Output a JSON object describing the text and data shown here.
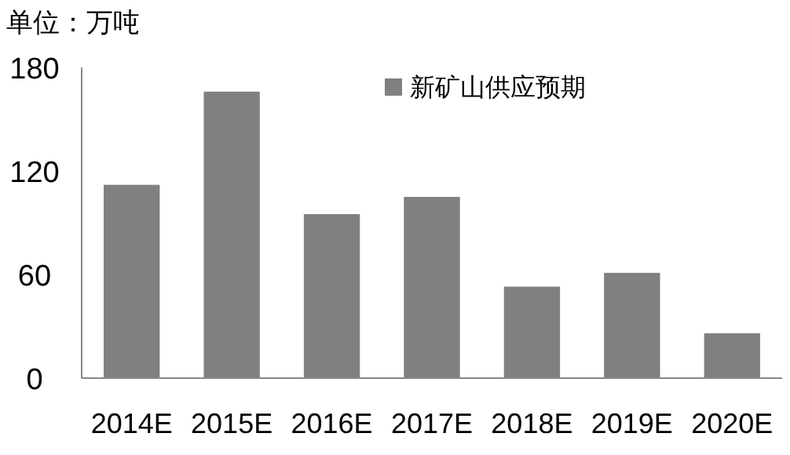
{
  "chart_data": {
    "type": "bar",
    "ylabel": "单位：万吨",
    "categories": [
      "2014E",
      "2015E",
      "2016E",
      "2017E",
      "2018E",
      "2019E",
      "2020E"
    ],
    "series": [
      {
        "name": "新矿山供应预期",
        "color": "#808080",
        "values": [
          112,
          166,
          95,
          105,
          53,
          61,
          26
        ]
      }
    ],
    "ylim": [
      0,
      180
    ],
    "yticks": [
      0,
      60,
      120,
      180
    ],
    "grid": false,
    "legend": "top right"
  }
}
